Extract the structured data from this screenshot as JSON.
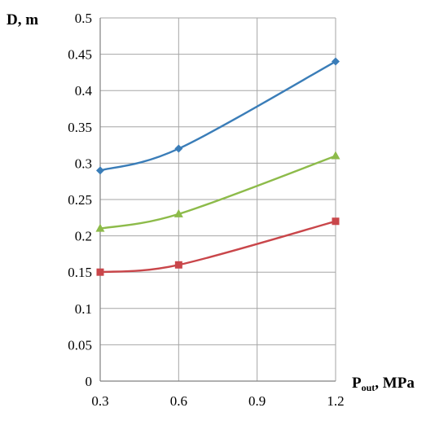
{
  "chart_data": {
    "type": "line",
    "title": "",
    "xlabel": {
      "main": "P",
      "sub": "out",
      "rest": ", MPa"
    },
    "ylabel": "D, m",
    "x": [
      0.3,
      0.6,
      1.2
    ],
    "xlim": [
      0.3,
      1.2
    ],
    "ylim": [
      0,
      0.5
    ],
    "x_ticks": [
      "0.3",
      "0.6",
      "0.9",
      "1.2"
    ],
    "y_ticks": [
      "0",
      "0.05",
      "0.1",
      "0.15",
      "0.2",
      "0.25",
      "0.3",
      "0.35",
      "0.4",
      "0.45",
      "0.5"
    ],
    "grid": true,
    "legend": "none",
    "series": [
      {
        "values": [
          0.29,
          0.32,
          0.44
        ],
        "color": "#3a7db8",
        "marker": "diamond"
      },
      {
        "values": [
          0.21,
          0.23,
          0.31
        ],
        "color": "#8dbb4a",
        "marker": "triangle"
      },
      {
        "values": [
          0.15,
          0.16,
          0.22
        ],
        "color": "#c9464a",
        "marker": "square"
      }
    ]
  }
}
